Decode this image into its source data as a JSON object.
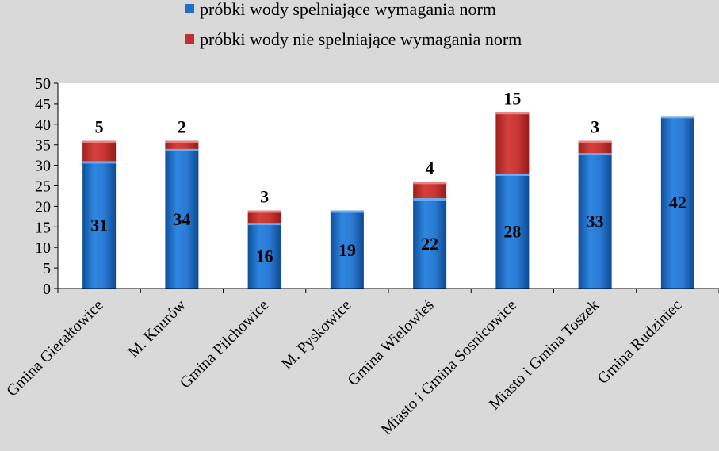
{
  "chart_data": {
    "type": "bar",
    "stacked": true,
    "categories": [
      "Gmina Gierałtowice",
      "M. Knurów",
      "Gmina Pilchowice",
      "M. Pyskowice",
      "Gmina Wielowieś",
      "Miasto i Gmina Sosnicowice",
      "Miasto i Gmina Toszek",
      "Gmina Rudziniec"
    ],
    "series": [
      {
        "name": "próbki wody spelniające wymagania norm",
        "values": [
          31,
          34,
          16,
          19,
          22,
          28,
          33,
          42
        ],
        "color": "#1f6fc4"
      },
      {
        "name": "próbki wody nie spelniające wymagania norm",
        "values": [
          5,
          2,
          3,
          0,
          4,
          15,
          3,
          0
        ],
        "color": "#c0302e"
      }
    ],
    "ylim": [
      0,
      50
    ],
    "yticks": [
      "0",
      "5",
      "10",
      "15",
      "20",
      "25",
      "30",
      "35",
      "40",
      "45",
      "50"
    ],
    "legend_position": "top",
    "grid": false
  }
}
